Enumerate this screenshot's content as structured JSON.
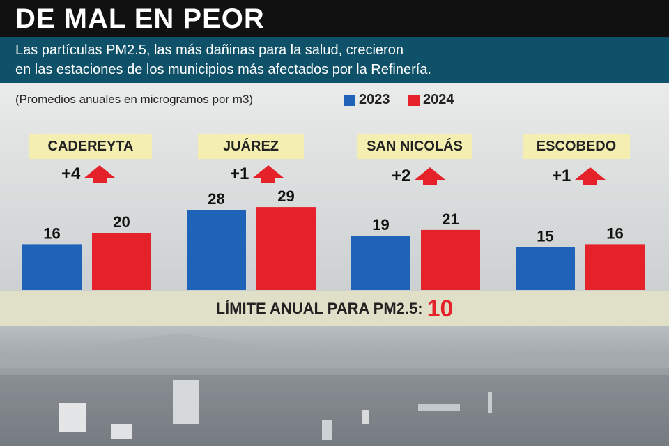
{
  "header": {
    "title": "DE MAL EN PEOR",
    "subtitle_line1": "Las partículas PM2.5, las más dañinas para la salud, crecieron",
    "subtitle_line2": "en las estaciones de los municipios más afectados por la Refinería."
  },
  "note": "(Promedios anuales en microgramos por m3)",
  "limit": {
    "label": "LÍMITE ANUAL PARA PM2.5:",
    "value": "10"
  },
  "colors": {
    "series_2023": "#1f63b8",
    "series_2024": "#e5222a",
    "arrow": "#e5222a",
    "label_bg": "#f4efb0"
  },
  "chart_data": {
    "type": "bar",
    "categories": [
      "CADEREYTA",
      "JUÁREZ",
      "SAN NICOLÁS",
      "ESCOBEDO"
    ],
    "series": [
      {
        "name": "2023",
        "values": [
          16,
          28,
          19,
          15
        ]
      },
      {
        "name": "2024",
        "values": [
          20,
          29,
          21,
          16
        ]
      }
    ],
    "changes": [
      "+4",
      "+1",
      "+2",
      "+1"
    ],
    "data_labels": true,
    "legend_position": "top",
    "grid": false
  }
}
